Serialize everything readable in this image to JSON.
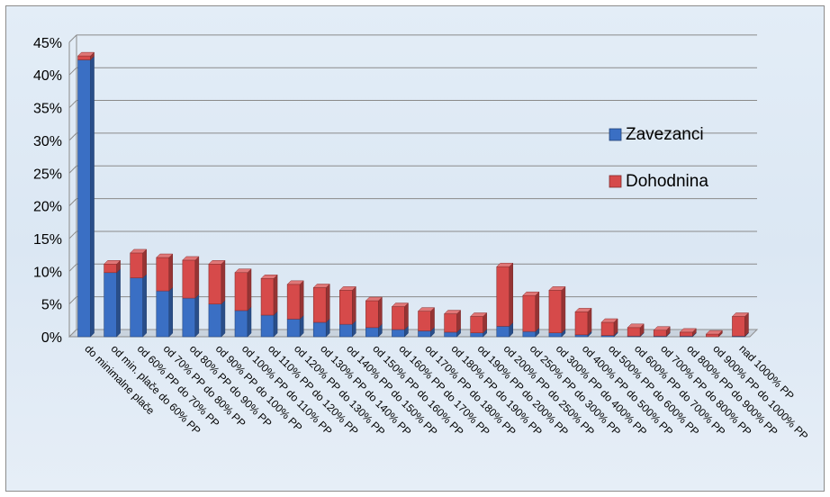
{
  "chart_data": {
    "type": "bar",
    "stacked": true,
    "three_d": true,
    "categories": [
      "do minimalne plače",
      "od min. plače do 60% PP",
      "od 60% PP do 70% PP",
      "od 70% PP do 80% PP",
      "od 80% PP do 90% PP",
      "od 90% PP do 100% PP",
      "od 100% PP do 110% PP",
      "od 110% PP do 120% PP",
      "od 120% PP do 130% PP",
      "od 130% PP do 140% PP",
      "od 140% PP do 150% PP",
      "od 150% PP do 160% PP",
      "od 160% PP do 170% PP",
      "od 170% PP do 180% PP",
      "od 180% PP do 190% PP",
      "od 190% PP do 200% PP",
      "od 200% PP do 250% PP",
      "od 250% PP do 300% PP",
      "od 300% PP do 400% PP",
      "od 400% PP do 500% PP",
      "od 500% PP do 600% PP",
      "od 600% PP do 700% PP",
      "od 700% PP do 800% PP",
      "od 800% PP do 900% PP",
      "od 900% PP do 1000% PP",
      "nad 1000% PP"
    ],
    "series": [
      {
        "name": "Zavezanci",
        "color": "#3a6fc4",
        "values": [
          42.3,
          9.8,
          9.0,
          7.0,
          5.9,
          5.0,
          4.0,
          3.3,
          2.7,
          2.2,
          1.9,
          1.4,
          1.1,
          0.9,
          0.7,
          0.6,
          1.6,
          0.8,
          0.6,
          0.3,
          0.2,
          0.1,
          0.1,
          0.1,
          0.0,
          0.1
        ]
      },
      {
        "name": "Dohodnina",
        "color": "#d64a4a",
        "values": [
          0.6,
          1.3,
          3.8,
          5.1,
          5.8,
          6.1,
          5.8,
          5.6,
          5.3,
          5.3,
          5.2,
          4.1,
          3.5,
          3.0,
          2.8,
          2.5,
          9.1,
          5.5,
          6.5,
          3.5,
          2.0,
          1.3,
          0.9,
          0.6,
          0.4,
          3.0
        ]
      }
    ],
    "ylim": [
      0,
      45
    ],
    "yticks": [
      "0%",
      "5%",
      "10%",
      "15%",
      "20%",
      "25%",
      "30%",
      "35%",
      "40%",
      "45%"
    ],
    "grid": true,
    "legend": "right"
  }
}
